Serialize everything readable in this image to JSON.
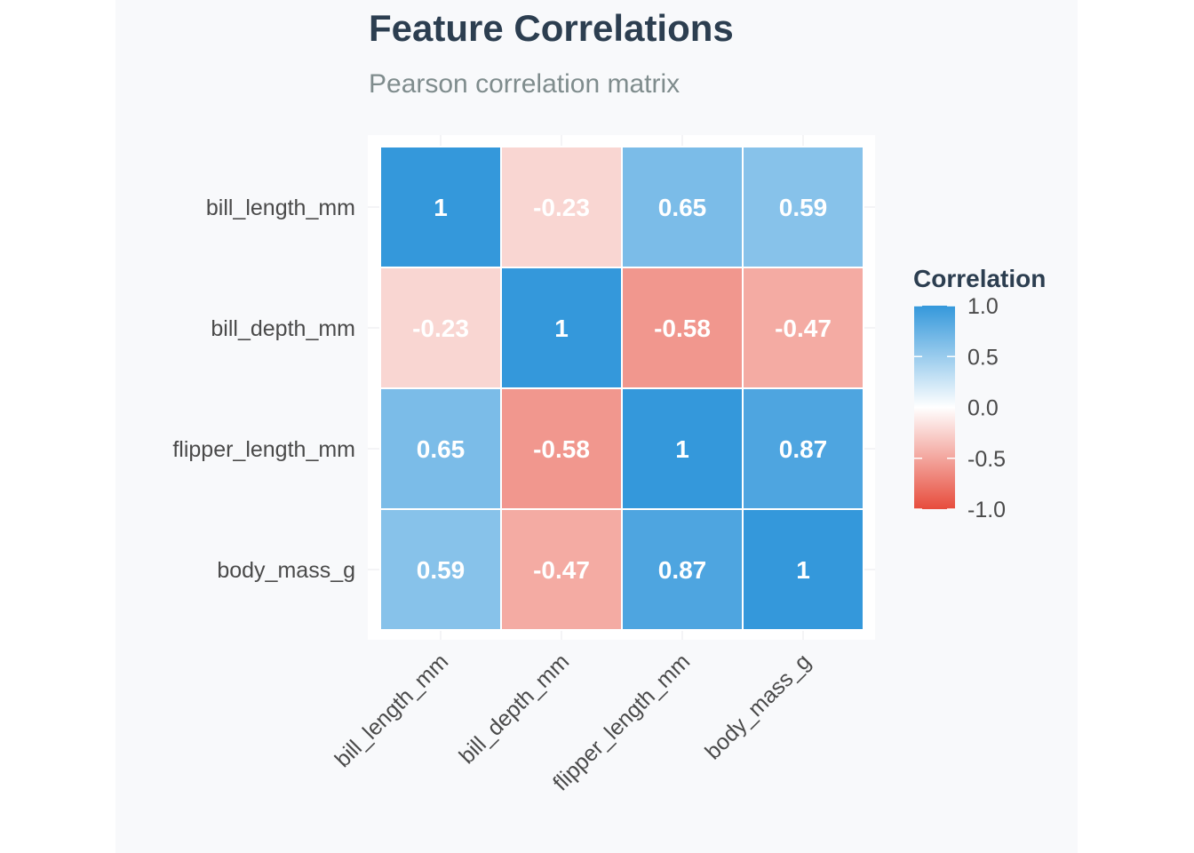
{
  "chart_data": {
    "type": "heatmap",
    "title": "Feature Correlations",
    "subtitle": "Pearson correlation matrix",
    "rows": [
      "bill_length_mm",
      "bill_depth_mm",
      "flipper_length_mm",
      "body_mass_g"
    ],
    "columns": [
      "bill_length_mm",
      "bill_depth_mm",
      "flipper_length_mm",
      "body_mass_g"
    ],
    "values": [
      [
        1,
        -0.23,
        0.65,
        0.59
      ],
      [
        -0.23,
        1,
        -0.58,
        -0.47
      ],
      [
        0.65,
        -0.58,
        1,
        0.87
      ],
      [
        0.59,
        -0.47,
        0.87,
        1
      ]
    ],
    "cell_labels": [
      [
        "1",
        "-0.23",
        "0.65",
        "0.59"
      ],
      [
        "-0.23",
        "1",
        "-0.58",
        "-0.47"
      ],
      [
        "0.65",
        "-0.58",
        "1",
        "0.87"
      ],
      [
        "0.59",
        "-0.47",
        "0.87",
        "1"
      ]
    ],
    "color_scale": {
      "low": "#e74c3c",
      "mid": "#ffffff",
      "high": "#3498db",
      "limits": [
        -1,
        1
      ]
    },
    "legend": {
      "title": "Correlation",
      "ticks": [
        1.0,
        0.5,
        0.0,
        -0.5,
        -1.0
      ],
      "tick_labels": [
        "1.0",
        "0.5",
        "0.0",
        "-0.5",
        "-1.0"
      ],
      "placement": "right"
    },
    "grid": true,
    "x_tick_rotation": 45
  }
}
